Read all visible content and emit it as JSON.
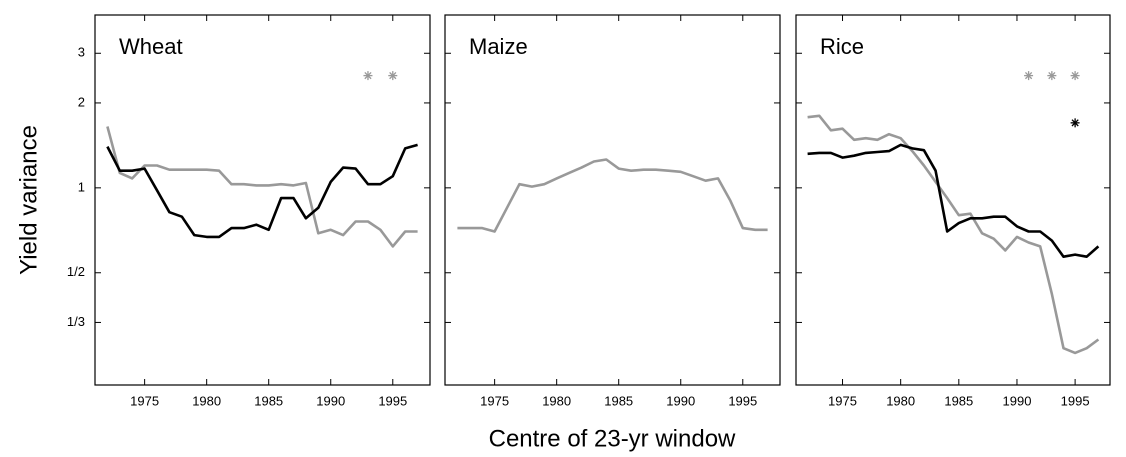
{
  "chart_data": [
    {
      "type": "line",
      "title": "Wheat",
      "ylabel": "Yield variance",
      "log_y": true,
      "xlim": [
        1971,
        1998
      ],
      "xticks": [
        1975,
        1980,
        1985,
        1990,
        1995
      ],
      "ylim": [
        0.2,
        4.1
      ],
      "yticks": [
        {
          "value": 0.3333,
          "label": "1/3"
        },
        {
          "value": 0.5,
          "label": "1/2"
        },
        1,
        2,
        3
      ],
      "x": [
        1972,
        1973,
        1974,
        1975,
        1976,
        1977,
        1978,
        1979,
        1980,
        1981,
        1982,
        1983,
        1984,
        1985,
        1986,
        1987,
        1988,
        1989,
        1990,
        1991,
        1992,
        1993,
        1994,
        1995,
        1996,
        1997
      ],
      "series": [
        {
          "color": "#999999",
          "values": [
            1.65,
            1.13,
            1.08,
            1.2,
            1.2,
            1.16,
            1.16,
            1.16,
            1.16,
            1.15,
            1.03,
            1.03,
            1.02,
            1.02,
            1.03,
            1.02,
            1.04,
            0.69,
            0.71,
            0.68,
            0.76,
            0.76,
            0.71,
            0.62,
            0.7,
            0.7
          ]
        },
        {
          "color": "#000000",
          "values": [
            1.4,
            1.15,
            1.15,
            1.17,
            0.98,
            0.82,
            0.79,
            0.68,
            0.67,
            0.67,
            0.72,
            0.72,
            0.74,
            0.71,
            0.92,
            0.92,
            0.78,
            0.85,
            1.05,
            1.18,
            1.17,
            1.03,
            1.03,
            1.1,
            1.38,
            1.42
          ]
        }
      ],
      "markers": [
        {
          "color": "#999999",
          "x": [
            1993,
            1995
          ],
          "y": [
            2.5,
            2.5
          ]
        }
      ]
    },
    {
      "type": "line",
      "title": "Maize",
      "xlabel": "Centre of 23-yr window",
      "xlim": [
        1971,
        1998
      ],
      "xticks": [
        1975,
        1980,
        1985,
        1990,
        1995
      ],
      "x": [
        1972,
        1973,
        1974,
        1975,
        1976,
        1977,
        1978,
        1979,
        1980,
        1981,
        1982,
        1983,
        1984,
        1985,
        1986,
        1987,
        1988,
        1989,
        1990,
        1991,
        1992,
        1993,
        1994,
        1995,
        1996,
        1997
      ],
      "series": [
        {
          "color": "#999999",
          "values": [
            0.72,
            0.72,
            0.72,
            0.7,
            0.85,
            1.03,
            1.01,
            1.03,
            1.08,
            1.13,
            1.18,
            1.24,
            1.26,
            1.17,
            1.15,
            1.16,
            1.16,
            1.15,
            1.14,
            1.1,
            1.06,
            1.08,
            0.9,
            0.72,
            0.71,
            0.71
          ]
        }
      ],
      "markers": []
    },
    {
      "type": "line",
      "title": "Rice",
      "xlim": [
        1971,
        1998
      ],
      "xticks": [
        1975,
        1980,
        1985,
        1990,
        1995
      ],
      "x": [
        1972,
        1973,
        1974,
        1975,
        1976,
        1977,
        1978,
        1979,
        1980,
        1981,
        1982,
        1983,
        1984,
        1985,
        1986,
        1987,
        1988,
        1989,
        1990,
        1991,
        1992,
        1993,
        1994,
        1995,
        1996,
        1997
      ],
      "series": [
        {
          "color": "#999999",
          "values": [
            1.78,
            1.8,
            1.6,
            1.62,
            1.48,
            1.5,
            1.48,
            1.55,
            1.5,
            1.35,
            1.2,
            1.05,
            0.92,
            0.8,
            0.81,
            0.69,
            0.66,
            0.6,
            0.67,
            0.64,
            0.62,
            0.42,
            0.27,
            0.26,
            0.27,
            0.29
          ]
        },
        {
          "color": "#000000",
          "values": [
            1.32,
            1.33,
            1.33,
            1.28,
            1.3,
            1.33,
            1.34,
            1.35,
            1.42,
            1.38,
            1.36,
            1.15,
            0.7,
            0.75,
            0.78,
            0.78,
            0.79,
            0.79,
            0.73,
            0.7,
            0.7,
            0.65,
            0.57,
            0.58,
            0.57,
            0.62
          ]
        }
      ],
      "markers": [
        {
          "color": "#999999",
          "x": [
            1991,
            1993,
            1995
          ],
          "y": [
            2.5,
            2.5,
            2.5
          ]
        },
        {
          "color": "#000000",
          "x": [
            1995
          ],
          "y": [
            1.7
          ]
        }
      ]
    }
  ]
}
